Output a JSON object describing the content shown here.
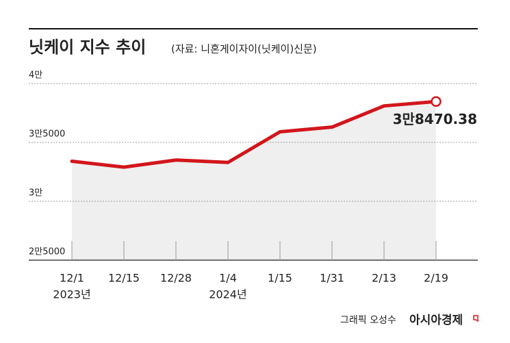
{
  "chart_data": {
    "type": "line",
    "title": "닛케이 지수 추이",
    "subtitle": "(자료: 니혼게이자이(닛케이)신문)",
    "categories": [
      "12/1",
      "12/15",
      "12/28",
      "1/4",
      "1/15",
      "1/31",
      "2/13",
      "2/19"
    ],
    "year_labels": [
      "2023년",
      null,
      null,
      "2024년",
      null,
      null,
      null,
      null
    ],
    "series": [
      {
        "color": "#d2161c",
        "values": [
          33400,
          32900,
          33500,
          33300,
          35900,
          36300,
          38100,
          38470.38
        ],
        "value_labels": [
          null,
          null,
          null,
          null,
          null,
          null,
          null,
          "3만8470.38"
        ]
      }
    ],
    "ylim": [
      25000,
      40000
    ],
    "yticks": [
      {
        "value": 25000,
        "label": "2만5000"
      },
      {
        "value": 30000,
        "label": "3만"
      },
      {
        "value": 35000,
        "label": "3만5000"
      },
      {
        "value": 40000,
        "label": "4만"
      }
    ],
    "grid": true,
    "credit": "그래픽 오성수",
    "source_brand": "아시아경제"
  }
}
